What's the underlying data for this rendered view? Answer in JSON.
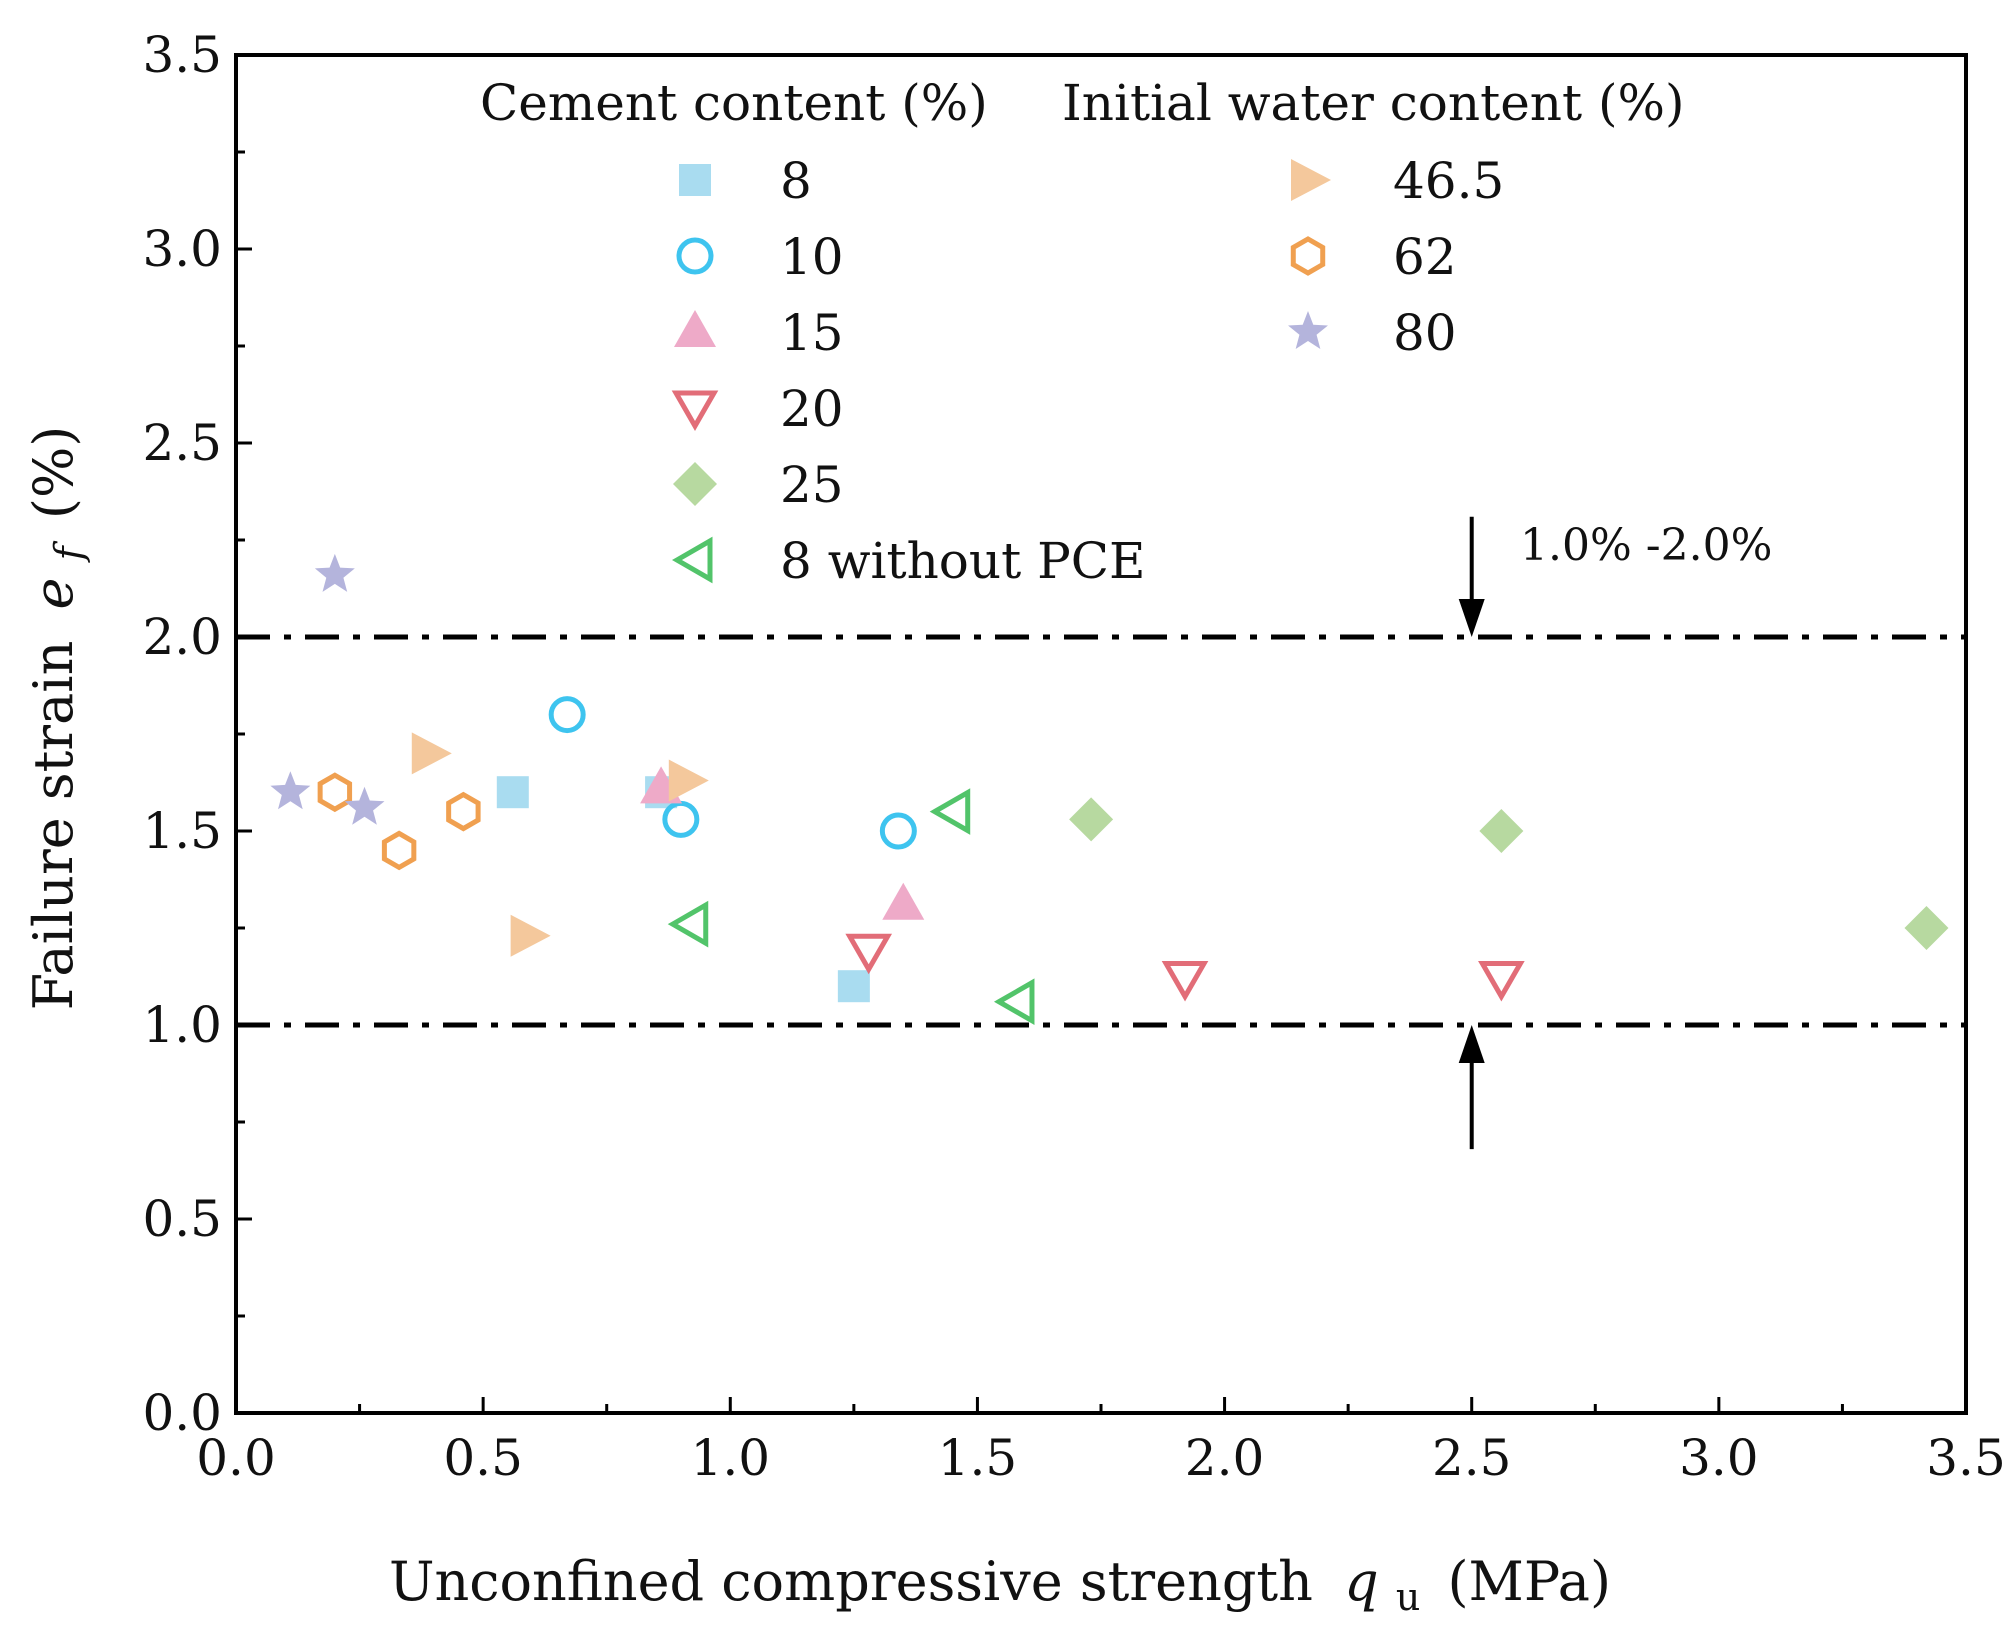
{
  "chart_data": {
    "type": "scatter",
    "xlabel": "Unconfined compressive strength",
    "xlabel_symbol": "q",
    "xlabel_subscript": "u",
    "xlabel_unit": "(MPa)",
    "ylabel": "Failure strain",
    "ylabel_symbol": "e",
    "ylabel_subscript": "f",
    "ylabel_unit": "(%)",
    "xlim": [
      0,
      3.5
    ],
    "ylim": [
      0,
      3.5
    ],
    "x_ticks": [
      "0.0",
      "0.5",
      "1.0",
      "1.5",
      "2.0",
      "2.5",
      "3.0",
      "3.5"
    ],
    "y_ticks": [
      "0.0",
      "0.5",
      "1.0",
      "1.5",
      "2.0",
      "2.5",
      "3.0",
      "3.5"
    ],
    "grid": false,
    "legend_groups": [
      {
        "title": "Cement content (%)",
        "series_names": [
          "8",
          "10",
          "15",
          "20",
          "25",
          "8 without PCE"
        ]
      },
      {
        "title": "Initial water content (%)",
        "series_names": [
          "46.5",
          "62",
          "80"
        ]
      }
    ],
    "series": [
      {
        "name": "8",
        "marker": "square",
        "filled": true,
        "color": "#a9dcf0",
        "points": [
          [
            0.56,
            1.6
          ],
          [
            0.86,
            1.6
          ],
          [
            1.25,
            1.1
          ]
        ]
      },
      {
        "name": "10",
        "marker": "circle",
        "filled": false,
        "color": "#3ec4ef",
        "points": [
          [
            0.67,
            1.8
          ],
          [
            0.9,
            1.53
          ],
          [
            1.34,
            1.5
          ]
        ]
      },
      {
        "name": "15",
        "marker": "triangle-up",
        "filled": true,
        "color": "#eeaac8",
        "points": [
          [
            0.86,
            1.61
          ],
          [
            1.35,
            1.31
          ]
        ]
      },
      {
        "name": "20",
        "marker": "triangle-down",
        "filled": false,
        "color": "#e26d78",
        "points": [
          [
            1.28,
            1.19
          ],
          [
            1.92,
            1.12
          ],
          [
            2.56,
            1.12
          ]
        ]
      },
      {
        "name": "25",
        "marker": "diamond",
        "filled": true,
        "color": "#b7d9a0",
        "points": [
          [
            1.73,
            1.53
          ],
          [
            2.56,
            1.5
          ],
          [
            3.42,
            1.25
          ]
        ]
      },
      {
        "name": "8 without PCE",
        "marker": "triangle-left",
        "filled": false,
        "color": "#52c46a",
        "points": [
          [
            0.92,
            1.26
          ],
          [
            1.45,
            1.55
          ],
          [
            1.58,
            1.06
          ]
        ]
      },
      {
        "name": "46.5",
        "marker": "triangle-right",
        "filled": true,
        "color": "#f4c89c",
        "points": [
          [
            0.39,
            1.7
          ],
          [
            0.59,
            1.23
          ],
          [
            0.91,
            1.63
          ]
        ]
      },
      {
        "name": "62",
        "marker": "hexagon",
        "filled": false,
        "color": "#f0a050",
        "points": [
          [
            0.2,
            1.6
          ],
          [
            0.33,
            1.45
          ],
          [
            0.46,
            1.55
          ]
        ]
      },
      {
        "name": "80",
        "marker": "star",
        "filled": true,
        "color": "#b4b4dc",
        "points": [
          [
            0.11,
            1.6
          ],
          [
            0.2,
            2.16
          ],
          [
            0.26,
            1.56
          ]
        ]
      }
    ],
    "reference_lines": [
      {
        "axis": "y",
        "value": 2.0,
        "style": "dash-dot"
      },
      {
        "axis": "y",
        "value": 1.0,
        "style": "dash-dot"
      }
    ],
    "annotation": {
      "text": "1.0% -2.0%",
      "arrow_x": 2.5,
      "arrow_down_from": 2.31,
      "arrow_up_from": 0.68
    }
  }
}
